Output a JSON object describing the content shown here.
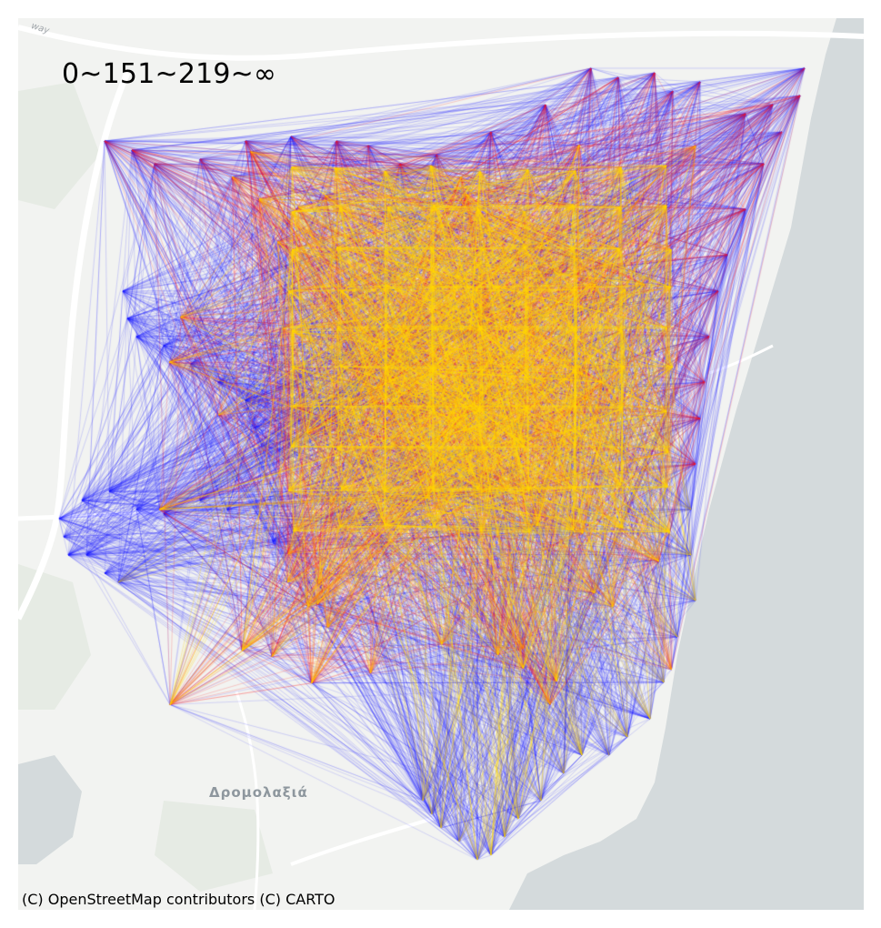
{
  "map": {
    "legend_label": "0~151~219~∞",
    "attribution": "(C) OpenStreetMap contributors (C) CARTO",
    "place_labels": {
      "town": "Δρομολαξιά",
      "road": "way"
    },
    "colors": {
      "land": "#f2f3f1",
      "water": "#d4dadc",
      "road": "#ffffff",
      "green": "#e6ebe4",
      "low_weight": "#1a1aff",
      "mid_weight": "#ff1a1a",
      "high_weight": "#ffd700"
    },
    "weight_classes": [
      {
        "range": "0~151",
        "color": "blue"
      },
      {
        "range": "151~219",
        "color": "red"
      },
      {
        "range": "219~∞",
        "color": "yellow"
      }
    ]
  }
}
